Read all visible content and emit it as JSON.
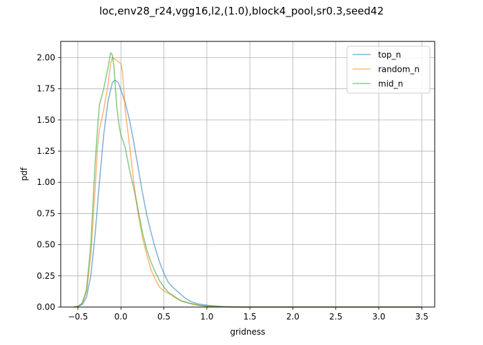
{
  "chart_data": {
    "type": "line",
    "title": "loc,env28_r24,vgg16,l2,(1.0),block4_pool,sr0.3,seed42",
    "xlabel": "gridness",
    "ylabel": "pdf",
    "xlim": [
      -0.7,
      3.65
    ],
    "ylim": [
      0.0,
      2.13
    ],
    "xticks": [
      -0.5,
      0.0,
      0.5,
      1.0,
      1.5,
      2.0,
      2.5,
      3.0,
      3.5
    ],
    "xtick_labels": [
      "−0.5",
      "0.0",
      "0.5",
      "1.0",
      "1.5",
      "2.0",
      "2.5",
      "3.0",
      "3.5"
    ],
    "yticks": [
      0.0,
      0.25,
      0.5,
      0.75,
      1.0,
      1.25,
      1.5,
      1.75,
      2.0
    ],
    "ytick_labels": [
      "0.00",
      "0.25",
      "0.50",
      "0.75",
      "1.00",
      "1.25",
      "1.50",
      "1.75",
      "2.00"
    ],
    "grid": true,
    "legend_position": "top-right",
    "series": [
      {
        "name": "top_n",
        "color": "#1f77b4",
        "points": [
          [
            -0.55,
            0.0
          ],
          [
            -0.5,
            0.005
          ],
          [
            -0.45,
            0.02
          ],
          [
            -0.4,
            0.08
          ],
          [
            -0.35,
            0.25
          ],
          [
            -0.3,
            0.58
          ],
          [
            -0.25,
            1.0
          ],
          [
            -0.2,
            1.38
          ],
          [
            -0.15,
            1.65
          ],
          [
            -0.1,
            1.8
          ],
          [
            -0.07,
            1.82
          ],
          [
            -0.03,
            1.8
          ],
          [
            0.0,
            1.74
          ],
          [
            0.05,
            1.64
          ],
          [
            0.1,
            1.5
          ],
          [
            0.15,
            1.32
          ],
          [
            0.2,
            1.12
          ],
          [
            0.25,
            0.92
          ],
          [
            0.3,
            0.74
          ],
          [
            0.35,
            0.6
          ],
          [
            0.4,
            0.47
          ],
          [
            0.45,
            0.36
          ],
          [
            0.5,
            0.27
          ],
          [
            0.55,
            0.2
          ],
          [
            0.6,
            0.16
          ],
          [
            0.65,
            0.13
          ],
          [
            0.7,
            0.1
          ],
          [
            0.75,
            0.07
          ],
          [
            0.8,
            0.05
          ],
          [
            0.85,
            0.035
          ],
          [
            0.9,
            0.025
          ],
          [
            1.0,
            0.015
          ],
          [
            1.1,
            0.008
          ],
          [
            1.2,
            0.004
          ],
          [
            1.3,
            0.002
          ],
          [
            1.5,
            0.0
          ],
          [
            3.5,
            0.0
          ]
        ]
      },
      {
        "name": "random_n",
        "color": "#ff7f0e",
        "points": [
          [
            -0.55,
            0.0
          ],
          [
            -0.5,
            0.005
          ],
          [
            -0.45,
            0.03
          ],
          [
            -0.4,
            0.12
          ],
          [
            -0.35,
            0.42
          ],
          [
            -0.3,
            0.95
          ],
          [
            -0.27,
            1.3
          ],
          [
            -0.25,
            1.42
          ],
          [
            -0.2,
            1.58
          ],
          [
            -0.15,
            1.78
          ],
          [
            -0.12,
            1.95
          ],
          [
            -0.1,
            2.0
          ],
          [
            -0.05,
            1.98
          ],
          [
            0.0,
            1.95
          ],
          [
            0.02,
            1.88
          ],
          [
            0.05,
            1.58
          ],
          [
            0.1,
            1.3
          ],
          [
            0.15,
            1.0
          ],
          [
            0.2,
            0.75
          ],
          [
            0.25,
            0.56
          ],
          [
            0.3,
            0.42
          ],
          [
            0.35,
            0.3
          ],
          [
            0.4,
            0.22
          ],
          [
            0.45,
            0.16
          ],
          [
            0.5,
            0.13
          ],
          [
            0.55,
            0.11
          ],
          [
            0.6,
            0.1
          ],
          [
            0.65,
            0.07
          ],
          [
            0.7,
            0.05
          ],
          [
            0.8,
            0.03
          ],
          [
            0.9,
            0.015
          ],
          [
            1.0,
            0.008
          ],
          [
            1.1,
            0.003
          ],
          [
            1.3,
            0.0
          ],
          [
            2.0,
            0.0
          ],
          [
            3.5,
            0.0
          ]
        ]
      },
      {
        "name": "mid_n",
        "color": "#2ca02c",
        "points": [
          [
            -0.55,
            0.0
          ],
          [
            -0.5,
            0.005
          ],
          [
            -0.45,
            0.03
          ],
          [
            -0.4,
            0.14
          ],
          [
            -0.35,
            0.5
          ],
          [
            -0.3,
            1.15
          ],
          [
            -0.27,
            1.45
          ],
          [
            -0.25,
            1.62
          ],
          [
            -0.2,
            1.75
          ],
          [
            -0.15,
            1.92
          ],
          [
            -0.12,
            2.04
          ],
          [
            -0.1,
            2.02
          ],
          [
            -0.08,
            1.92
          ],
          [
            -0.05,
            1.62
          ],
          [
            -0.02,
            1.45
          ],
          [
            0.0,
            1.38
          ],
          [
            0.05,
            1.28
          ],
          [
            0.1,
            1.1
          ],
          [
            0.15,
            0.95
          ],
          [
            0.2,
            0.78
          ],
          [
            0.25,
            0.6
          ],
          [
            0.3,
            0.46
          ],
          [
            0.35,
            0.36
          ],
          [
            0.4,
            0.28
          ],
          [
            0.45,
            0.21
          ],
          [
            0.5,
            0.16
          ],
          [
            0.55,
            0.12
          ],
          [
            0.6,
            0.09
          ],
          [
            0.65,
            0.07
          ],
          [
            0.7,
            0.05
          ],
          [
            0.8,
            0.03
          ],
          [
            0.9,
            0.015
          ],
          [
            1.0,
            0.007
          ],
          [
            1.2,
            0.002
          ],
          [
            1.4,
            0.0
          ],
          [
            3.5,
            0.0
          ]
        ]
      }
    ]
  }
}
